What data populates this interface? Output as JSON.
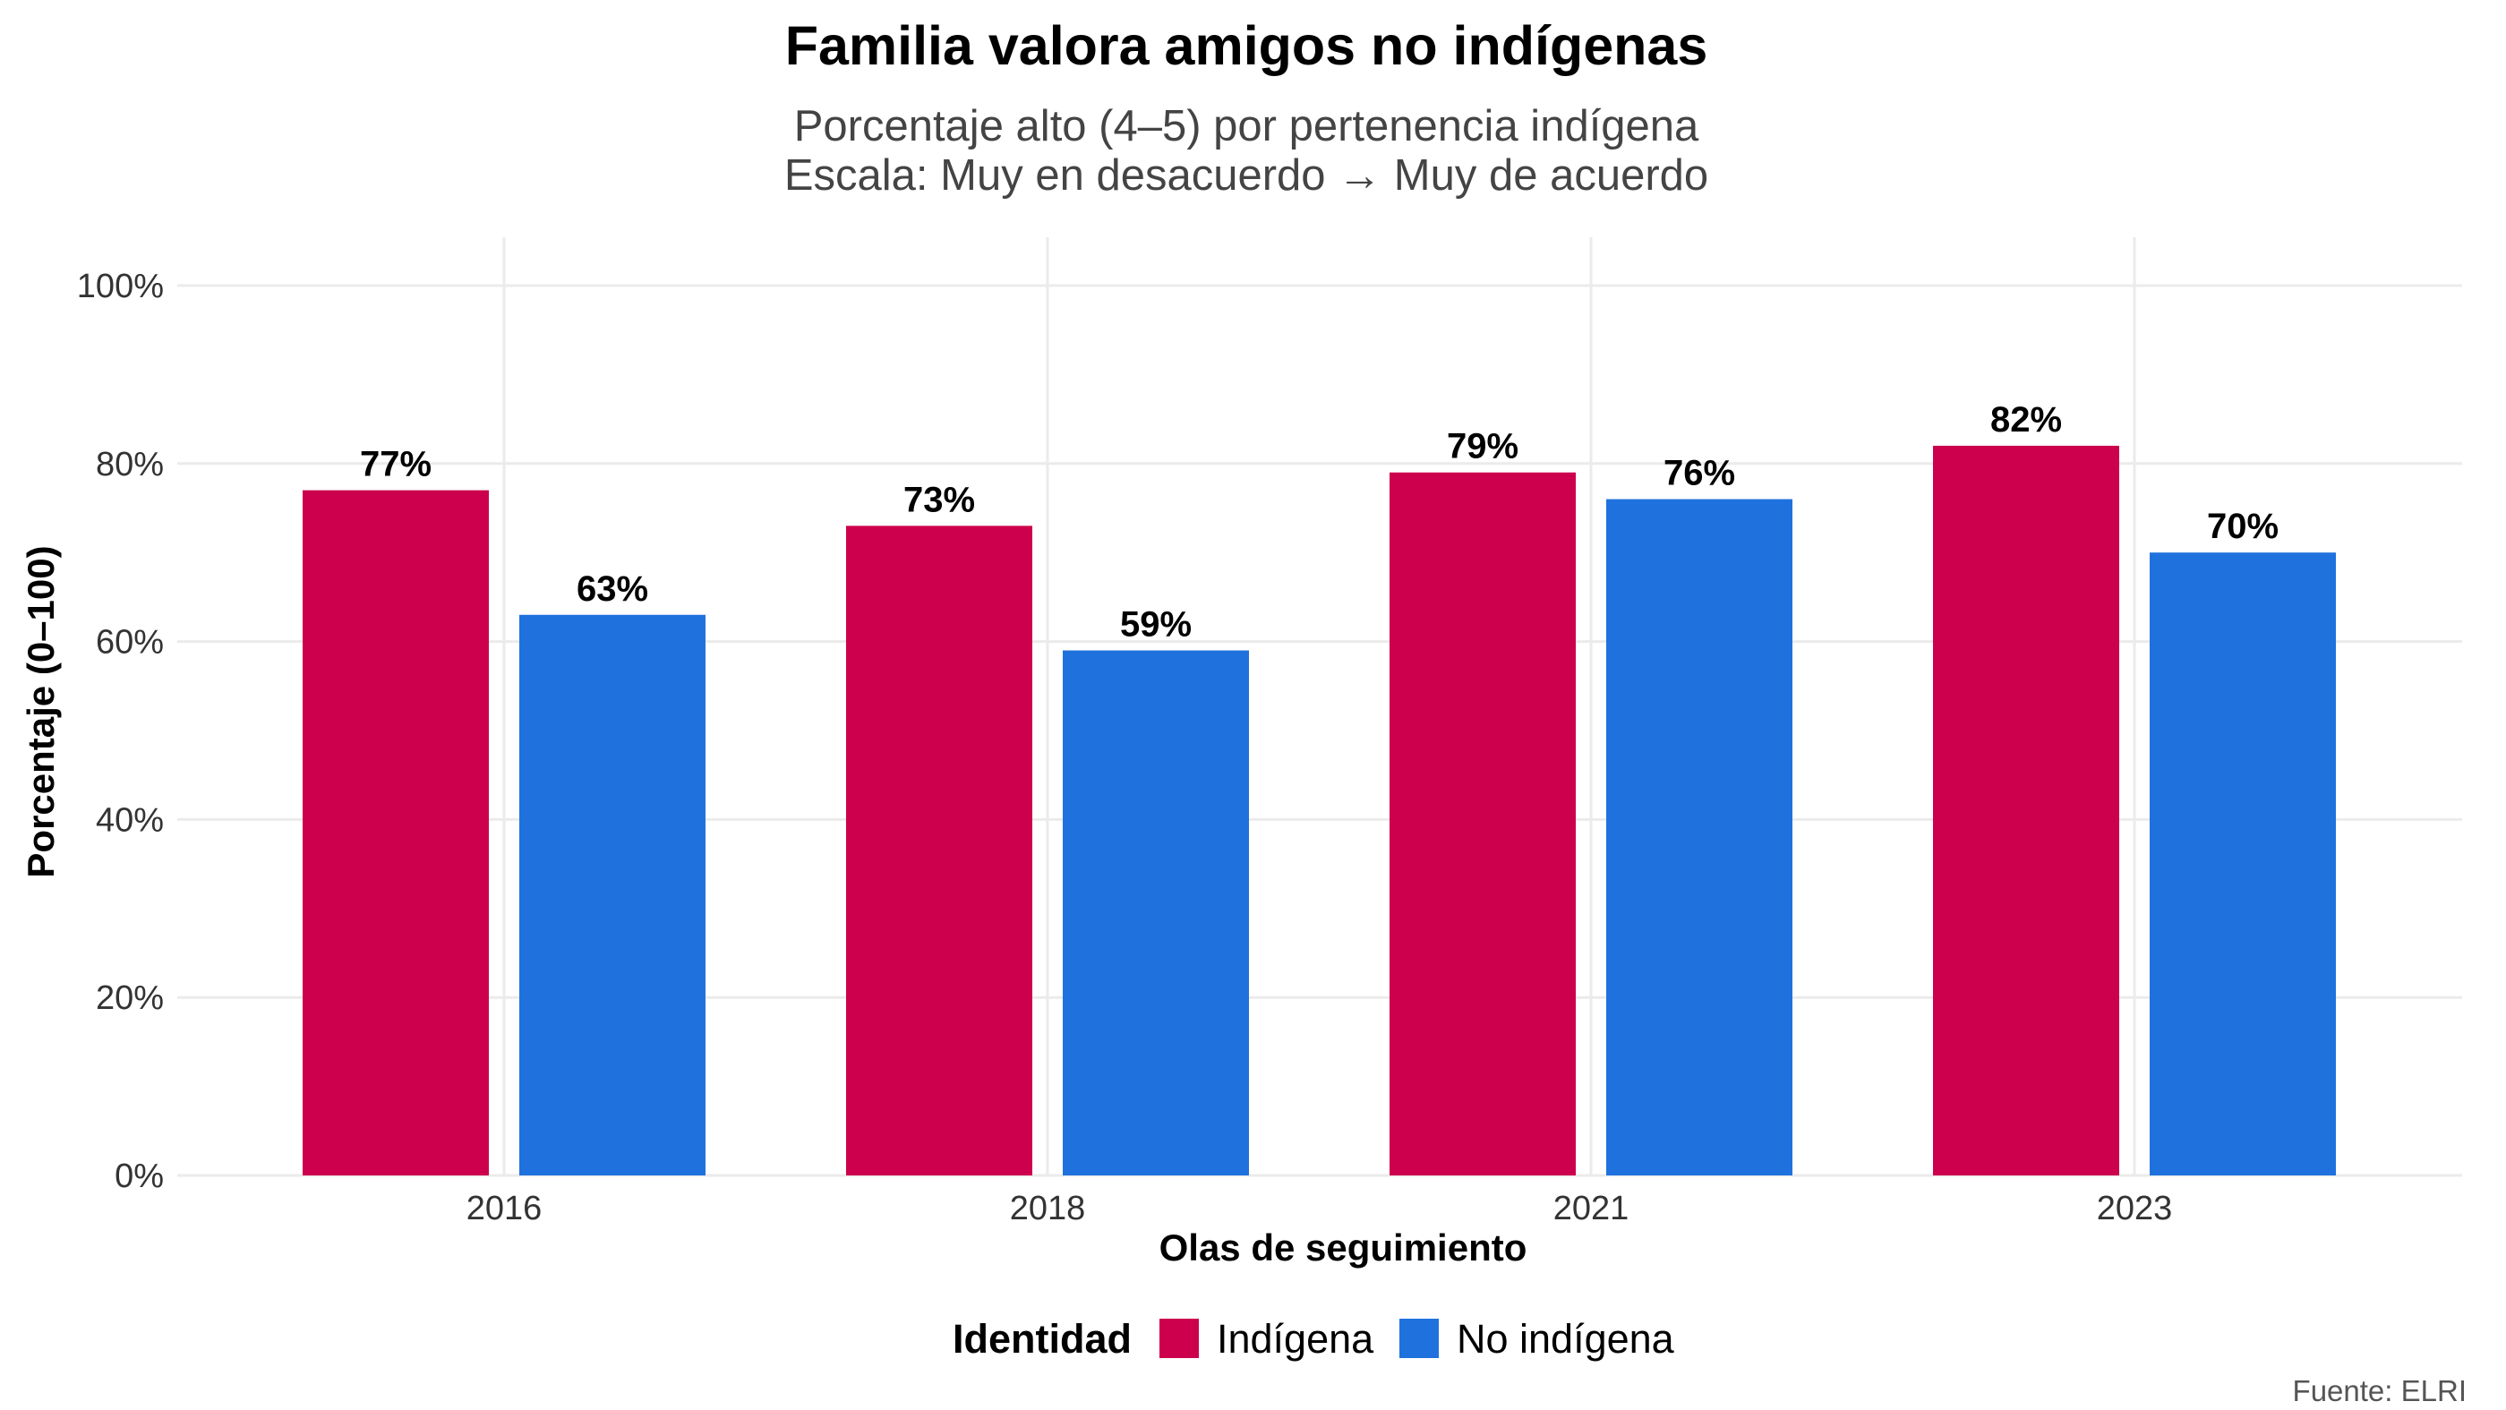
{
  "chart_data": {
    "type": "bar",
    "title": "Familia valora amigos no indígenas",
    "subtitle_lines": [
      "Porcentaje alto (4–5) por pertenencia indígena",
      "Escala: Muy en desacuerdo → Muy de acuerdo"
    ],
    "xlabel": "Olas de seguimiento",
    "ylabel": "Porcentaje (0–100)",
    "categories": [
      "2016",
      "2018",
      "2021",
      "2023"
    ],
    "series": [
      {
        "name": "Indígena",
        "color": "#CC004C",
        "values": [
          77,
          73,
          79,
          82
        ],
        "labels": [
          "77%",
          "73%",
          "79%",
          "82%"
        ]
      },
      {
        "name": "No indígena",
        "color": "#1F72DE",
        "values": [
          63,
          59,
          76,
          70
        ],
        "labels": [
          "63%",
          "59%",
          "76%",
          "70%"
        ]
      }
    ],
    "ylim": [
      0,
      100
    ],
    "yticks": [
      0,
      20,
      40,
      60,
      80,
      100
    ],
    "ytick_labels": [
      "0%",
      "20%",
      "40%",
      "60%",
      "80%",
      "100%"
    ],
    "grid": true,
    "legend_title": "Identidad",
    "legend_position": "bottom",
    "caption": "Fuente: ELRI"
  }
}
